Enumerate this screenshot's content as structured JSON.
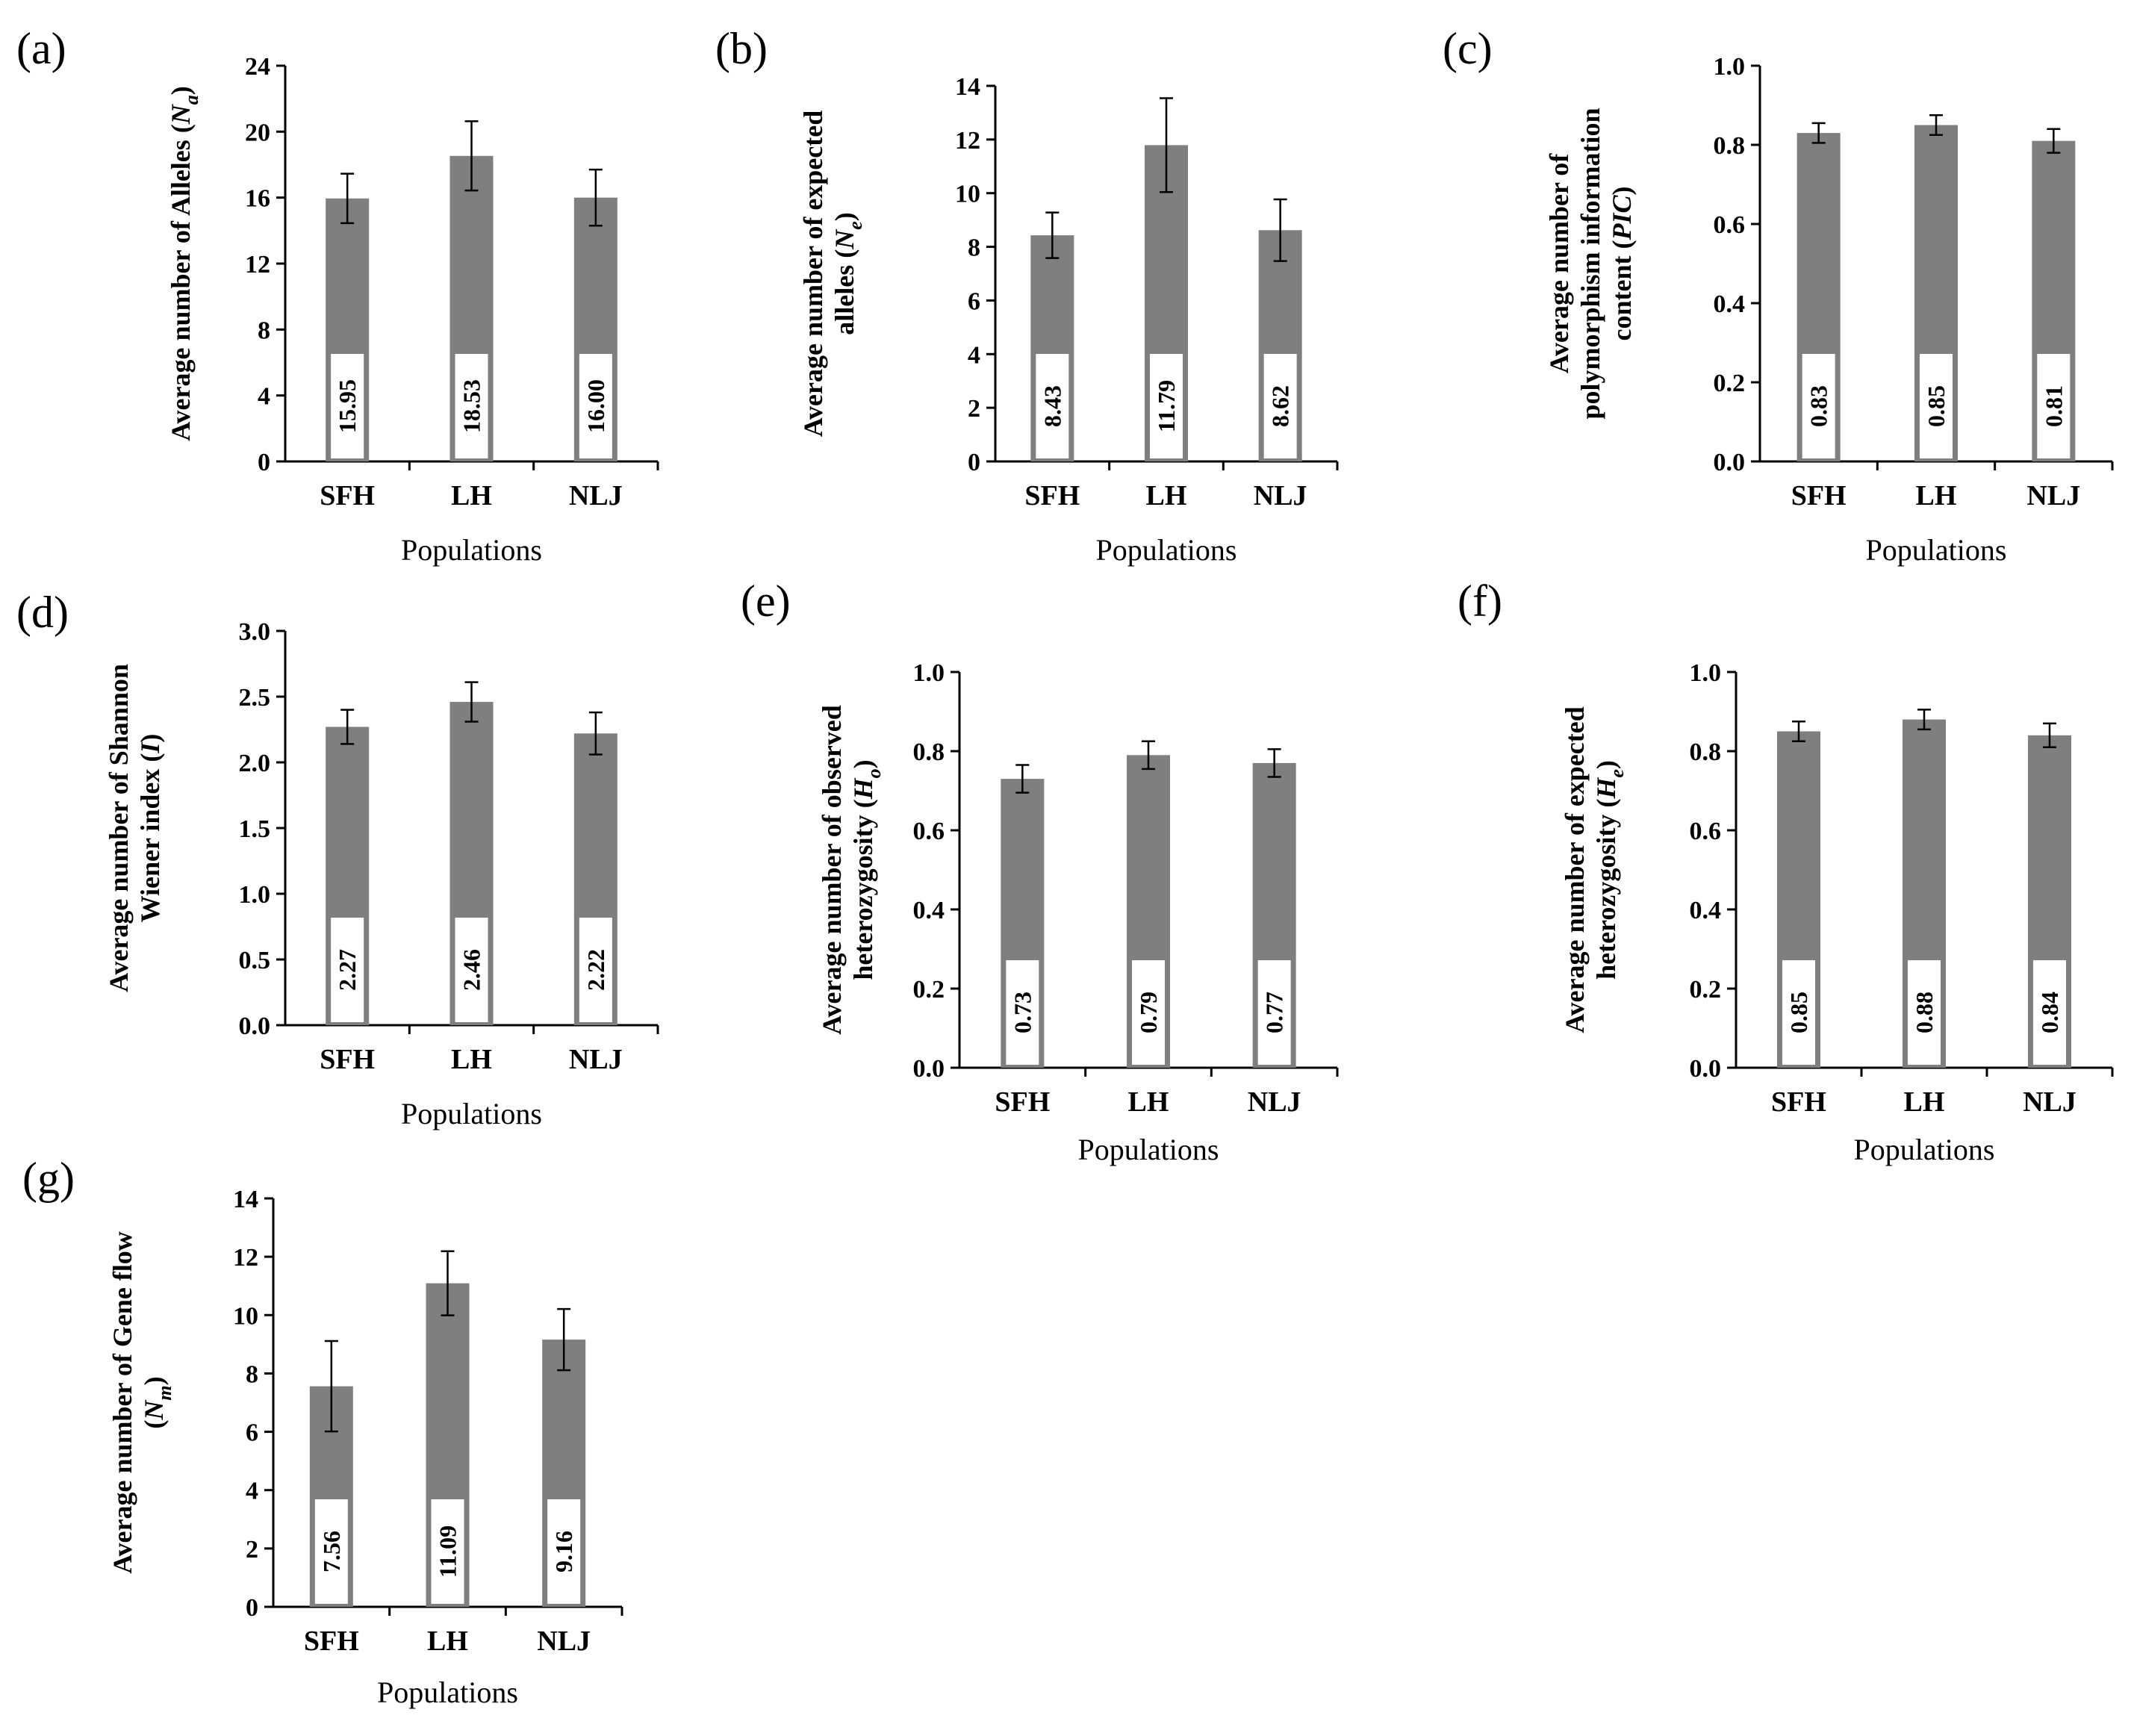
{
  "colors": {
    "bar": "#7f7f7f",
    "axis": "#000000",
    "label_box": "#ffffff"
  },
  "chart_data": [
    {
      "panel": "(a)",
      "type": "bar",
      "categories": [
        "SFH",
        "LH",
        "NLJ"
      ],
      "values": [
        15.95,
        18.53,
        16.0
      ],
      "value_labels": [
        "15.95",
        "18.53",
        "16.00"
      ],
      "errors": [
        1.5,
        2.1,
        1.7
      ],
      "ylim": [
        0,
        24
      ],
      "yticks": [
        "0",
        "4",
        "8",
        "12",
        "16",
        "20",
        "24"
      ],
      "xlabel": "Populations",
      "ylabel": [
        [
          {
            "t": "Average number of Alleles ("
          },
          {
            "t": "N",
            "i": true
          },
          {
            "t": "a",
            "i": true,
            "sub": true
          },
          {
            "t": ")"
          }
        ]
      ]
    },
    {
      "panel": "(b)",
      "type": "bar",
      "categories": [
        "SFH",
        "LH",
        "NLJ"
      ],
      "values": [
        8.43,
        11.79,
        8.62
      ],
      "value_labels": [
        "8.43",
        "11.79",
        "8.62"
      ],
      "errors": [
        0.85,
        1.75,
        1.15
      ],
      "ylim": [
        0,
        14
      ],
      "yticks": [
        "0",
        "2",
        "4",
        "6",
        "8",
        "10",
        "12",
        "14"
      ],
      "xlabel": "Populations",
      "ylabel": [
        [
          {
            "t": "Average number of expected"
          }
        ],
        [
          {
            "t": "alleles ("
          },
          {
            "t": "N",
            "i": true
          },
          {
            "t": "e",
            "i": true,
            "sub": true
          },
          {
            "t": ")"
          }
        ]
      ]
    },
    {
      "panel": "(c)",
      "type": "bar",
      "categories": [
        "SFH",
        "LH",
        "NLJ"
      ],
      "values": [
        0.83,
        0.85,
        0.81
      ],
      "value_labels": [
        "0.83",
        "0.85",
        "0.81"
      ],
      "errors": [
        0.025,
        0.025,
        0.03
      ],
      "ylim": [
        0,
        1.0
      ],
      "yticks": [
        "0.0",
        "0.2",
        "0.4",
        "0.6",
        "0.8",
        "1.0"
      ],
      "xlabel": "Populations",
      "ylabel": [
        [
          {
            "t": "Average number of"
          }
        ],
        [
          {
            "t": "polymorphism information"
          }
        ],
        [
          {
            "t": "content ("
          },
          {
            "t": "PIC",
            "i": true
          },
          {
            "t": ")"
          }
        ]
      ]
    },
    {
      "panel": "(d)",
      "type": "bar",
      "categories": [
        "SFH",
        "LH",
        "NLJ"
      ],
      "values": [
        2.27,
        2.46,
        2.22
      ],
      "value_labels": [
        "2.27",
        "2.46",
        "2.22"
      ],
      "errors": [
        0.13,
        0.15,
        0.16
      ],
      "ylim": [
        0,
        3.0
      ],
      "yticks": [
        "0.0",
        "0.5",
        "1.0",
        "1.5",
        "2.0",
        "2.5",
        "3.0"
      ],
      "xlabel": "Populations",
      "ylabel": [
        [
          {
            "t": "Average number of Shannon"
          }
        ],
        [
          {
            "t": "Wiener index ("
          },
          {
            "t": "I",
            "i": true
          },
          {
            "t": ")"
          }
        ]
      ]
    },
    {
      "panel": "(e)",
      "type": "bar",
      "categories": [
        "SFH",
        "LH",
        "NLJ"
      ],
      "values": [
        0.73,
        0.79,
        0.77
      ],
      "value_labels": [
        "0.73",
        "0.79",
        "0.77"
      ],
      "errors": [
        0.035,
        0.035,
        0.035
      ],
      "ylim": [
        0,
        1.0
      ],
      "yticks": [
        "0.0",
        "0.2",
        "0.4",
        "0.6",
        "0.8",
        "1.0"
      ],
      "xlabel": "Populations",
      "ylabel": [
        [
          {
            "t": "Average number of observed"
          }
        ],
        [
          {
            "t": "heterozygosity ("
          },
          {
            "t": "H",
            "i": true
          },
          {
            "t": "o",
            "i": true,
            "sub": true
          },
          {
            "t": ")"
          }
        ]
      ]
    },
    {
      "panel": "(f)",
      "type": "bar",
      "categories": [
        "SFH",
        "LH",
        "NLJ"
      ],
      "values": [
        0.85,
        0.88,
        0.84
      ],
      "value_labels": [
        "0.85",
        "0.88",
        "0.84"
      ],
      "errors": [
        0.025,
        0.025,
        0.03
      ],
      "ylim": [
        0,
        1.0
      ],
      "yticks": [
        "0.0",
        "0.2",
        "0.4",
        "0.6",
        "0.8",
        "1.0"
      ],
      "xlabel": "Populations",
      "ylabel": [
        [
          {
            "t": "Average number of expected"
          }
        ],
        [
          {
            "t": "heterozygosity ("
          },
          {
            "t": "H",
            "i": true
          },
          {
            "t": "e",
            "i": true,
            "sub": true
          },
          {
            "t": ")"
          }
        ]
      ]
    },
    {
      "panel": "(g)",
      "type": "bar",
      "categories": [
        "SFH",
        "LH",
        "NLJ"
      ],
      "values": [
        7.56,
        11.09,
        9.16
      ],
      "value_labels": [
        "7.56",
        "11.09",
        "9.16"
      ],
      "errors": [
        1.55,
        1.1,
        1.05
      ],
      "ylim": [
        0,
        14
      ],
      "yticks": [
        "0",
        "2",
        "4",
        "6",
        "8",
        "10",
        "12",
        "14"
      ],
      "xlabel": "Populations",
      "ylabel": [
        [
          {
            "t": "Average number of Gene flow"
          }
        ],
        [
          {
            "t": "("
          },
          {
            "t": "N",
            "i": true
          },
          {
            "t": "m",
            "i": true,
            "sub": true
          },
          {
            "t": ")"
          }
        ]
      ]
    }
  ]
}
